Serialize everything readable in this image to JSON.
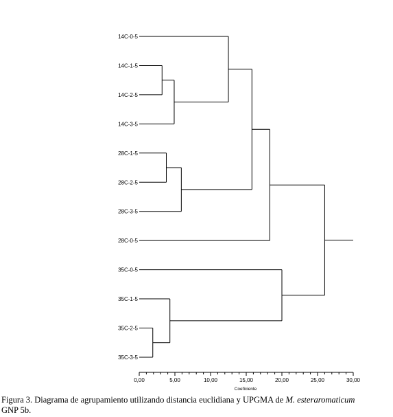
{
  "chart_data": {
    "type": "dendrogram",
    "method": "UPGMA",
    "xlabel": "Coeficiente",
    "xlim": [
      0,
      30
    ],
    "xticks": [
      "0,00",
      "5,00",
      "10,00",
      "15,00",
      "20,00",
      "25,00",
      "30,00"
    ],
    "xtick_values": [
      0,
      5,
      10,
      15,
      20,
      25,
      30
    ],
    "minor_tick_step": 1,
    "leaves": [
      "14C-0-5",
      "14C-1-5",
      "14C-2-5",
      "14C-3-5",
      "28C-1-5",
      "28C-2-5",
      "28C-3-5",
      "28C-0-5",
      "35C-0-5",
      "35C-1-5",
      "35C-2-5",
      "35C-3-5"
    ],
    "merges": [
      {
        "left": "14C-1-5",
        "right": "14C-2-5",
        "height": 3.2
      },
      {
        "left": "28C-1-5",
        "right": "28C-2-5",
        "height": 3.8
      },
      {
        "left": "35C-2-5",
        "right": "35C-3-5",
        "height": 1.9
      },
      {
        "left": "35C-1-5",
        "right": "m3",
        "height": 4.3
      },
      {
        "left": "m1",
        "right": "14C-3-5",
        "height": 4.9
      },
      {
        "left": "m2",
        "right": "28C-3-5",
        "height": 5.9
      },
      {
        "left": "14C-0-5",
        "right": "m5",
        "height": 12.5
      },
      {
        "left": "m7",
        "right": "m6",
        "height": 15.8
      },
      {
        "left": "m8",
        "right": "28C-0-5",
        "height": 18.3
      },
      {
        "left": "35C-0-5",
        "right": "m4",
        "height": 20.0
      },
      {
        "left": "m9",
        "right": "m10",
        "height": 26.0
      }
    ],
    "root_tail": 30.0
  },
  "caption": {
    "prefix": "Figura 3. Diagrama de agrupamiento utilizando distancia euclidiana y UPGMA de ",
    "species": "M. esteraromaticum",
    "suffix": "GNP 5b."
  }
}
